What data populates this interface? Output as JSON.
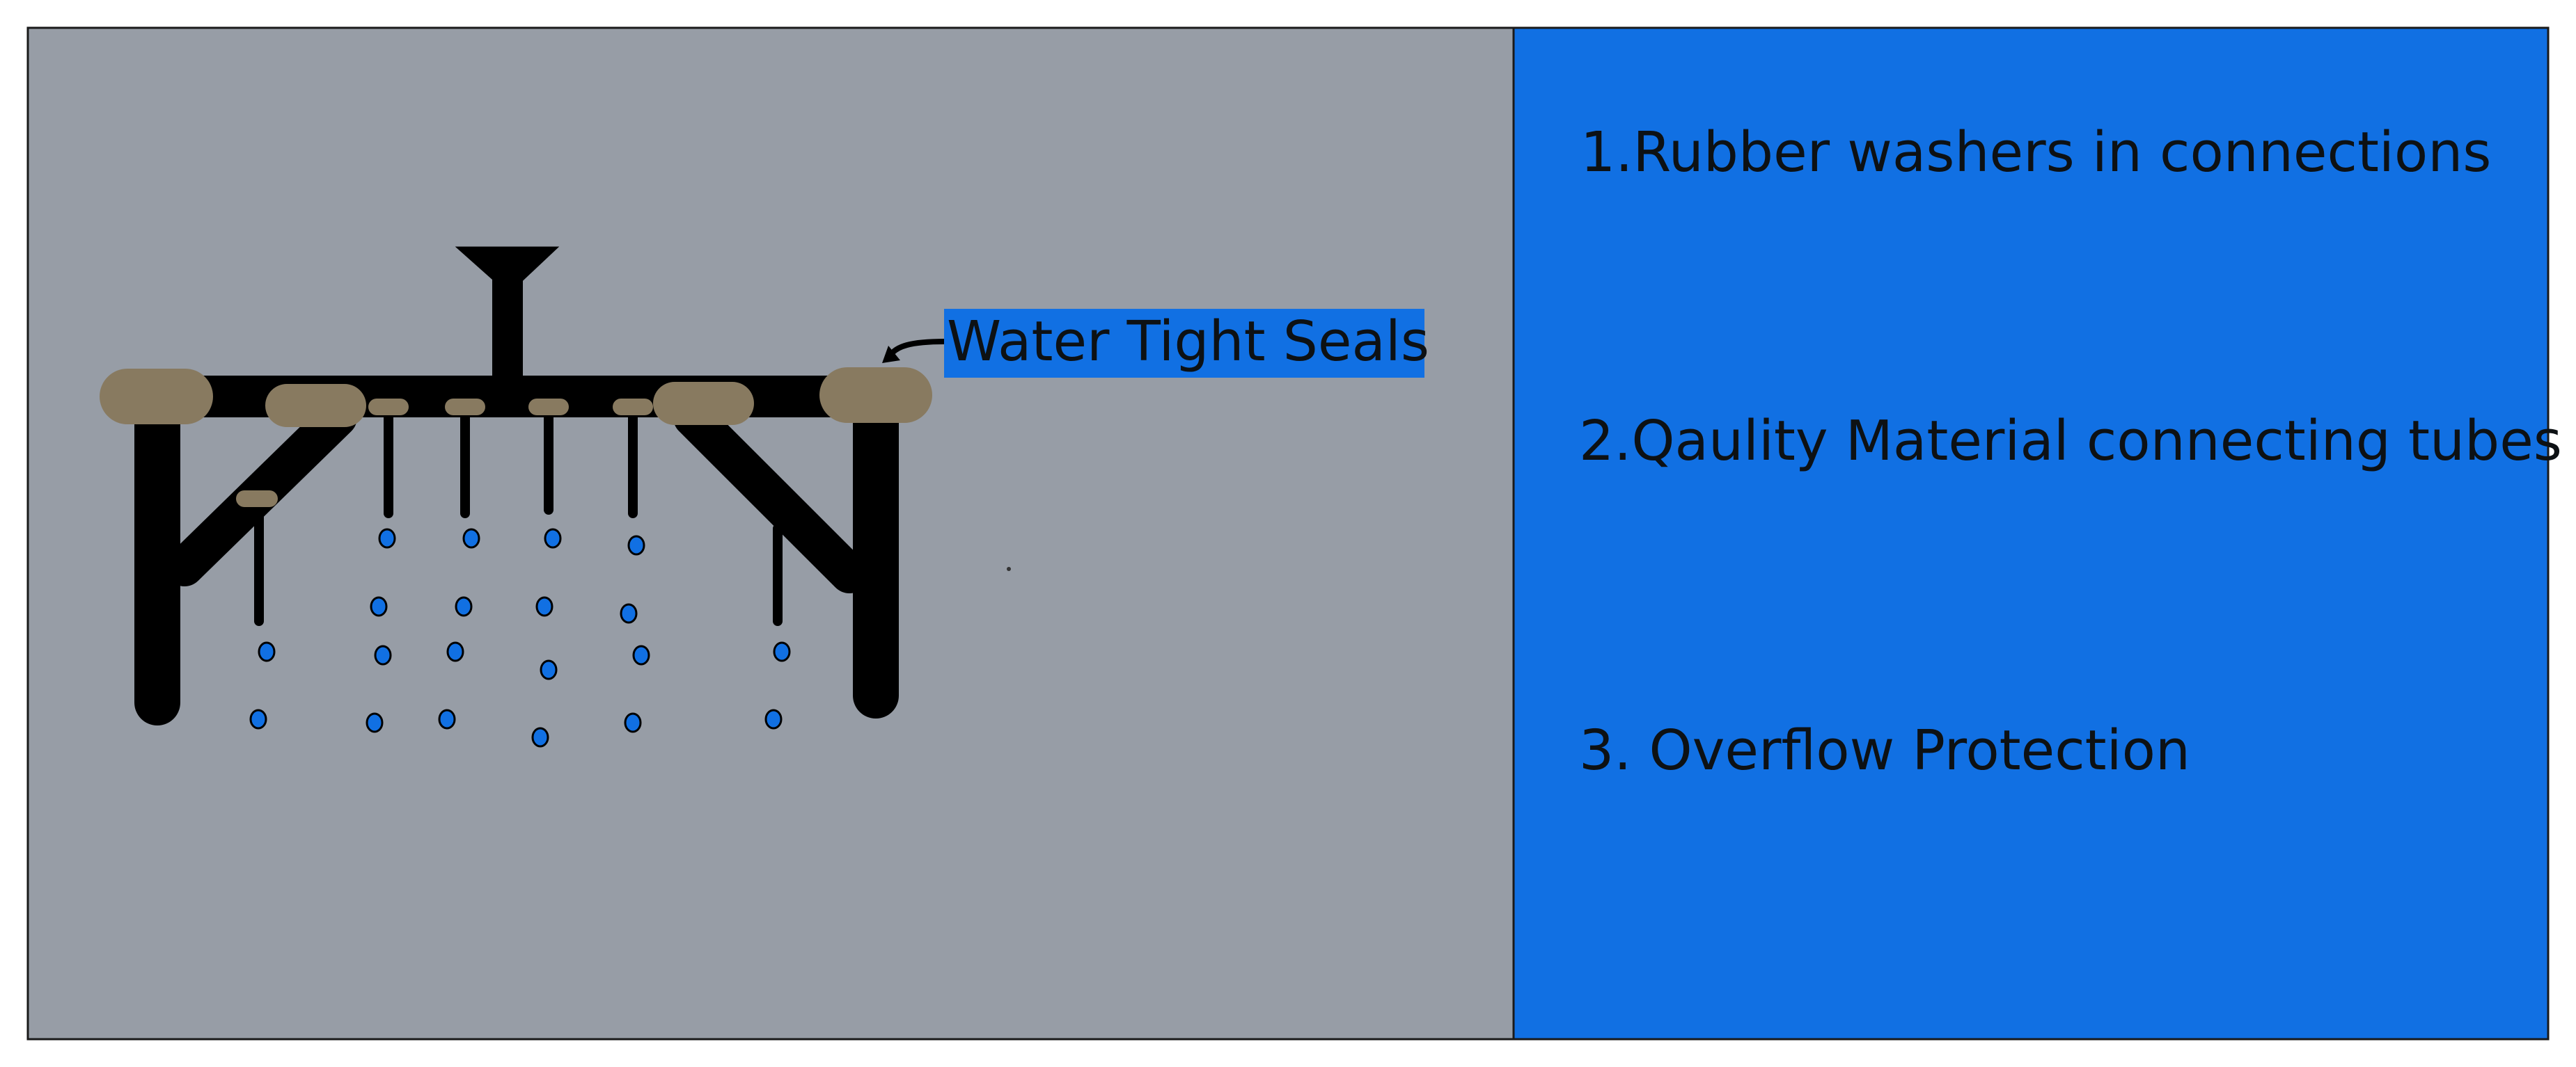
{
  "colors": {
    "left_panel": "#979da6",
    "right_panel": "#1170e3",
    "structure": "#000000",
    "seal": "#887a60",
    "drop": "#1170e3",
    "label_bg": "#1170e3",
    "text": "#0d1114"
  },
  "diagram": {
    "callout_label": "Water Tight Seals"
  },
  "features": {
    "items": [
      "1.Rubber washers in connections",
      "2.Qaulity Material connecting tubes",
      "3. Overflow Protection"
    ]
  }
}
